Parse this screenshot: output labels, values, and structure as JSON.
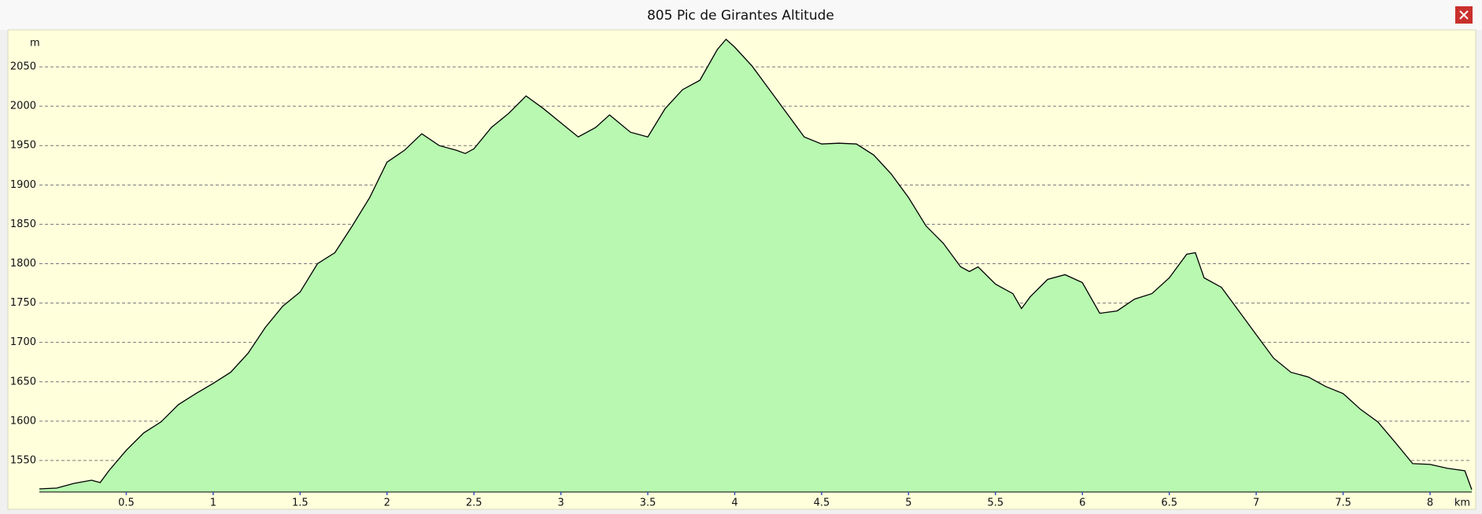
{
  "window_title": "805 Pic de Girantes Altitude",
  "chart_data": {
    "type": "area",
    "y_unit": "m",
    "x_unit": "km",
    "x": [
      0,
      0.1,
      0.2,
      0.3,
      0.35,
      0.4,
      0.5,
      0.6,
      0.7,
      0.8,
      0.9,
      1.0,
      1.1,
      1.2,
      1.3,
      1.4,
      1.5,
      1.6,
      1.7,
      1.8,
      1.9,
      2.0,
      2.1,
      2.2,
      2.3,
      2.4,
      2.45,
      2.5,
      2.6,
      2.7,
      2.8,
      2.9,
      3.0,
      3.1,
      3.2,
      3.28,
      3.4,
      3.5,
      3.6,
      3.7,
      3.8,
      3.9,
      3.95,
      4.0,
      4.1,
      4.2,
      4.3,
      4.4,
      4.5,
      4.6,
      4.7,
      4.8,
      4.9,
      5.0,
      5.1,
      5.2,
      5.3,
      5.35,
      5.4,
      5.5,
      5.6,
      5.65,
      5.7,
      5.8,
      5.9,
      6.0,
      6.1,
      6.2,
      6.3,
      6.4,
      6.5,
      6.6,
      6.65,
      6.7,
      6.8,
      6.9,
      7.0,
      7.1,
      7.2,
      7.3,
      7.4,
      7.5,
      7.6,
      7.7,
      7.8,
      7.9,
      8.0,
      8.1,
      8.2,
      8.24
    ],
    "series": [
      {
        "color": "#b8f8b0",
        "values": [
          1514,
          1515,
          1521,
          1525,
          1522,
          1537,
          1563,
          1585,
          1599,
          1621,
          1635,
          1648,
          1662,
          1686,
          1719,
          1746,
          1764,
          1800,
          1814,
          1848,
          1884,
          1929,
          1944,
          1965,
          1950,
          1944,
          1940,
          1946,
          1973,
          1991,
          2013,
          1997,
          1979,
          1961,
          1973,
          1989,
          1967,
          1961,
          1997,
          2021,
          2033,
          2072,
          2085,
          2075,
          2051,
          2021,
          1991,
          1961,
          1952,
          1953,
          1952,
          1938,
          1914,
          1884,
          1848,
          1826,
          1796,
          1790,
          1796,
          1774,
          1762,
          1743,
          1758,
          1780,
          1786,
          1776,
          1737,
          1740,
          1755,
          1762,
          1782,
          1812,
          1814,
          1782,
          1770,
          1740,
          1710,
          1680,
          1662,
          1656,
          1644,
          1635,
          1615,
          1599,
          1573,
          1546,
          1545,
          1540,
          1537,
          1513
        ]
      }
    ],
    "xlim": [
      0,
      8.24
    ],
    "ylim": [
      1510,
      2093
    ],
    "xticks": [
      0.5,
      1,
      1.5,
      2,
      2.5,
      3,
      3.5,
      4,
      4.5,
      5,
      5.5,
      6,
      6.5,
      7,
      7.5,
      8
    ],
    "yticks": [
      1550,
      1600,
      1650,
      1700,
      1750,
      1800,
      1850,
      1900,
      1950,
      2000,
      2050
    ],
    "grid": true
  }
}
